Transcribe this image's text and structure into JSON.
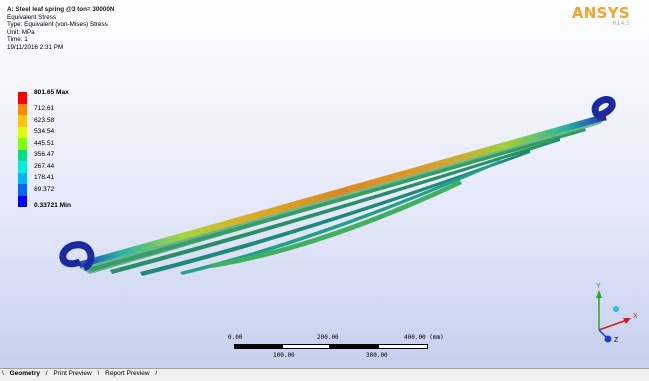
{
  "header": {
    "title": "A: Steel leaf spring @3 ton= 30000N",
    "result": "Equivalent Stress",
    "type": "Type: Equivalent (von-Mises) Stress",
    "unit": "Unit: MPa",
    "time": "Time: 1",
    "date": "19/11/2016 2:31 PM"
  },
  "logo": {
    "brand": "ANSYS",
    "version": "R14.5"
  },
  "legend": {
    "items": [
      {
        "label": "801.65 Max",
        "color": "#ff0000"
      },
      {
        "label": "712.61",
        "color": "#ff8c00"
      },
      {
        "label": "623.58",
        "color": "#ffc800"
      },
      {
        "label": "534.54",
        "color": "#ddff00"
      },
      {
        "label": "445.51",
        "color": "#7fff00"
      },
      {
        "label": "356.47",
        "color": "#00e08a"
      },
      {
        "label": "267.44",
        "color": "#00f0d8"
      },
      {
        "label": "178.41",
        "color": "#00b8ff"
      },
      {
        "label": "89.372",
        "color": "#0064ff"
      },
      {
        "label": "0.33721 Min",
        "color": "#0000ff"
      }
    ]
  },
  "scale": {
    "top": [
      "0.00",
      "200.00",
      "400.00 (mm)"
    ],
    "bottom": [
      "100.00",
      "300.00"
    ]
  },
  "triad": {
    "x": "X",
    "y": "Y",
    "z": "Z"
  },
  "tabs": [
    "Geometry",
    "Print Preview",
    "Report Preview"
  ],
  "colors": {
    "viewport_bottom": "#c6cfee",
    "logo": "#f6a32e"
  }
}
